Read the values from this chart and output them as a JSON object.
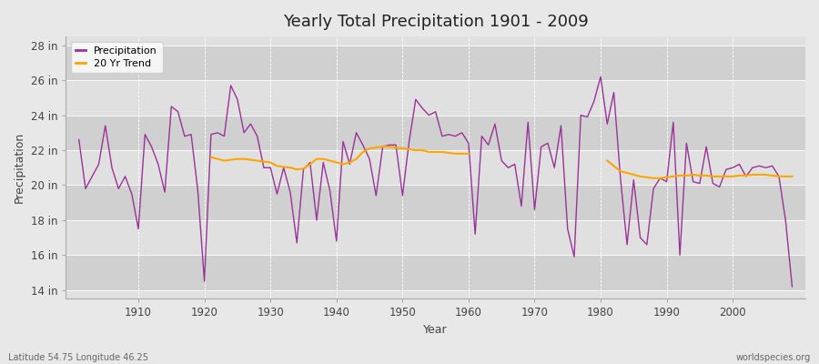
{
  "title": "Yearly Total Precipitation 1901 - 2009",
  "xlabel": "Year",
  "ylabel": "Precipitation",
  "subtitle": "Latitude 54.75 Longitude 46.25",
  "watermark": "worldspecies.org",
  "years": [
    1901,
    1902,
    1903,
    1904,
    1905,
    1906,
    1907,
    1908,
    1909,
    1910,
    1911,
    1912,
    1913,
    1914,
    1915,
    1916,
    1917,
    1918,
    1919,
    1920,
    1921,
    1922,
    1923,
    1924,
    1925,
    1926,
    1927,
    1928,
    1929,
    1930,
    1931,
    1932,
    1933,
    1934,
    1935,
    1936,
    1937,
    1938,
    1939,
    1940,
    1941,
    1942,
    1943,
    1944,
    1945,
    1946,
    1947,
    1948,
    1949,
    1950,
    1951,
    1952,
    1953,
    1954,
    1955,
    1956,
    1957,
    1958,
    1959,
    1960,
    1961,
    1962,
    1963,
    1964,
    1965,
    1966,
    1967,
    1968,
    1969,
    1970,
    1971,
    1972,
    1973,
    1974,
    1975,
    1976,
    1977,
    1978,
    1979,
    1980,
    1981,
    1982,
    1983,
    1984,
    1985,
    1986,
    1987,
    1988,
    1989,
    1990,
    1991,
    1992,
    1993,
    1994,
    1995,
    1996,
    1997,
    1998,
    1999,
    2000,
    2001,
    2002,
    2003,
    2004,
    2005,
    2006,
    2007,
    2008,
    2009
  ],
  "precip": [
    22.6,
    19.8,
    20.5,
    21.2,
    23.4,
    21.0,
    19.8,
    20.5,
    19.5,
    17.5,
    22.9,
    22.2,
    21.2,
    19.6,
    24.5,
    24.2,
    22.8,
    22.9,
    19.7,
    14.5,
    22.9,
    23.0,
    22.8,
    25.7,
    24.9,
    23.0,
    23.5,
    22.8,
    21.0,
    21.0,
    19.5,
    21.0,
    19.6,
    16.7,
    20.9,
    21.3,
    18.0,
    21.3,
    19.7,
    16.8,
    22.5,
    21.2,
    23.0,
    22.3,
    21.5,
    19.4,
    22.2,
    22.3,
    22.3,
    19.4,
    22.5,
    24.9,
    24.4,
    24.0,
    24.2,
    22.8,
    22.9,
    22.8,
    23.0,
    22.4,
    17.2,
    22.8,
    22.3,
    23.5,
    21.4,
    21.0,
    21.2,
    18.8,
    23.6,
    18.6,
    22.2,
    22.4,
    21.0,
    23.4,
    17.5,
    15.9,
    24.0,
    23.9,
    24.8,
    26.2,
    23.5,
    25.3,
    20.4,
    16.6,
    20.3,
    17.0,
    16.6,
    19.8,
    20.4,
    20.2,
    23.6,
    16.0,
    22.4,
    20.2,
    20.1,
    22.2,
    20.1,
    19.9,
    20.9,
    21.0,
    21.2,
    20.5,
    21.0,
    21.1,
    21.0,
    21.1,
    20.5,
    18.0,
    14.2
  ],
  "trend_years_1": [
    1921,
    1922,
    1923,
    1924,
    1925,
    1926,
    1927,
    1928,
    1929,
    1930,
    1931,
    1932,
    1933,
    1934,
    1935,
    1936,
    1937,
    1938,
    1939,
    1940,
    1941,
    1942,
    1943,
    1944,
    1945,
    1946,
    1947,
    1948,
    1949,
    1950,
    1951,
    1952,
    1953,
    1954,
    1955,
    1956,
    1957,
    1958,
    1959,
    1960
  ],
  "trend_1": [
    21.6,
    21.5,
    21.4,
    21.45,
    21.5,
    21.5,
    21.45,
    21.4,
    21.35,
    21.3,
    21.1,
    21.05,
    21.0,
    20.9,
    20.95,
    21.2,
    21.5,
    21.5,
    21.4,
    21.3,
    21.2,
    21.3,
    21.5,
    21.9,
    22.1,
    22.15,
    22.2,
    22.2,
    22.15,
    22.1,
    22.05,
    22.0,
    22.0,
    21.9,
    21.9,
    21.9,
    21.85,
    21.8,
    21.8,
    21.8
  ],
  "trend_years_2": [
    1981,
    1982,
    1983,
    1984,
    1985,
    1986,
    1987,
    1988,
    1989,
    1990,
    1991,
    1992,
    1993,
    1994,
    1995,
    1996,
    1997,
    1998,
    1999,
    2000,
    2001,
    2002,
    2003,
    2004,
    2005,
    2006,
    2007,
    2008,
    2009
  ],
  "trend_2": [
    21.4,
    21.1,
    20.8,
    20.7,
    20.6,
    20.5,
    20.45,
    20.4,
    20.4,
    20.45,
    20.5,
    20.55,
    20.55,
    20.6,
    20.55,
    20.55,
    20.5,
    20.5,
    20.5,
    20.5,
    20.55,
    20.55,
    20.6,
    20.6,
    20.6,
    20.55,
    20.5,
    20.5,
    20.5
  ],
  "precip_color": "#993399",
  "trend_color": "#FFA500",
  "background_color": "#e8e8e8",
  "plot_bg_color_light": "#e0e0e0",
  "plot_bg_color_dark": "#d0d0d0",
  "grid_color": "#ffffff",
  "ylim": [
    13.5,
    28.5
  ],
  "yticks": [
    14,
    16,
    18,
    20,
    22,
    24,
    26,
    28
  ],
  "xlim": [
    1899,
    2011
  ],
  "xticks": [
    1910,
    1920,
    1930,
    1940,
    1950,
    1960,
    1970,
    1980,
    1990,
    2000
  ]
}
